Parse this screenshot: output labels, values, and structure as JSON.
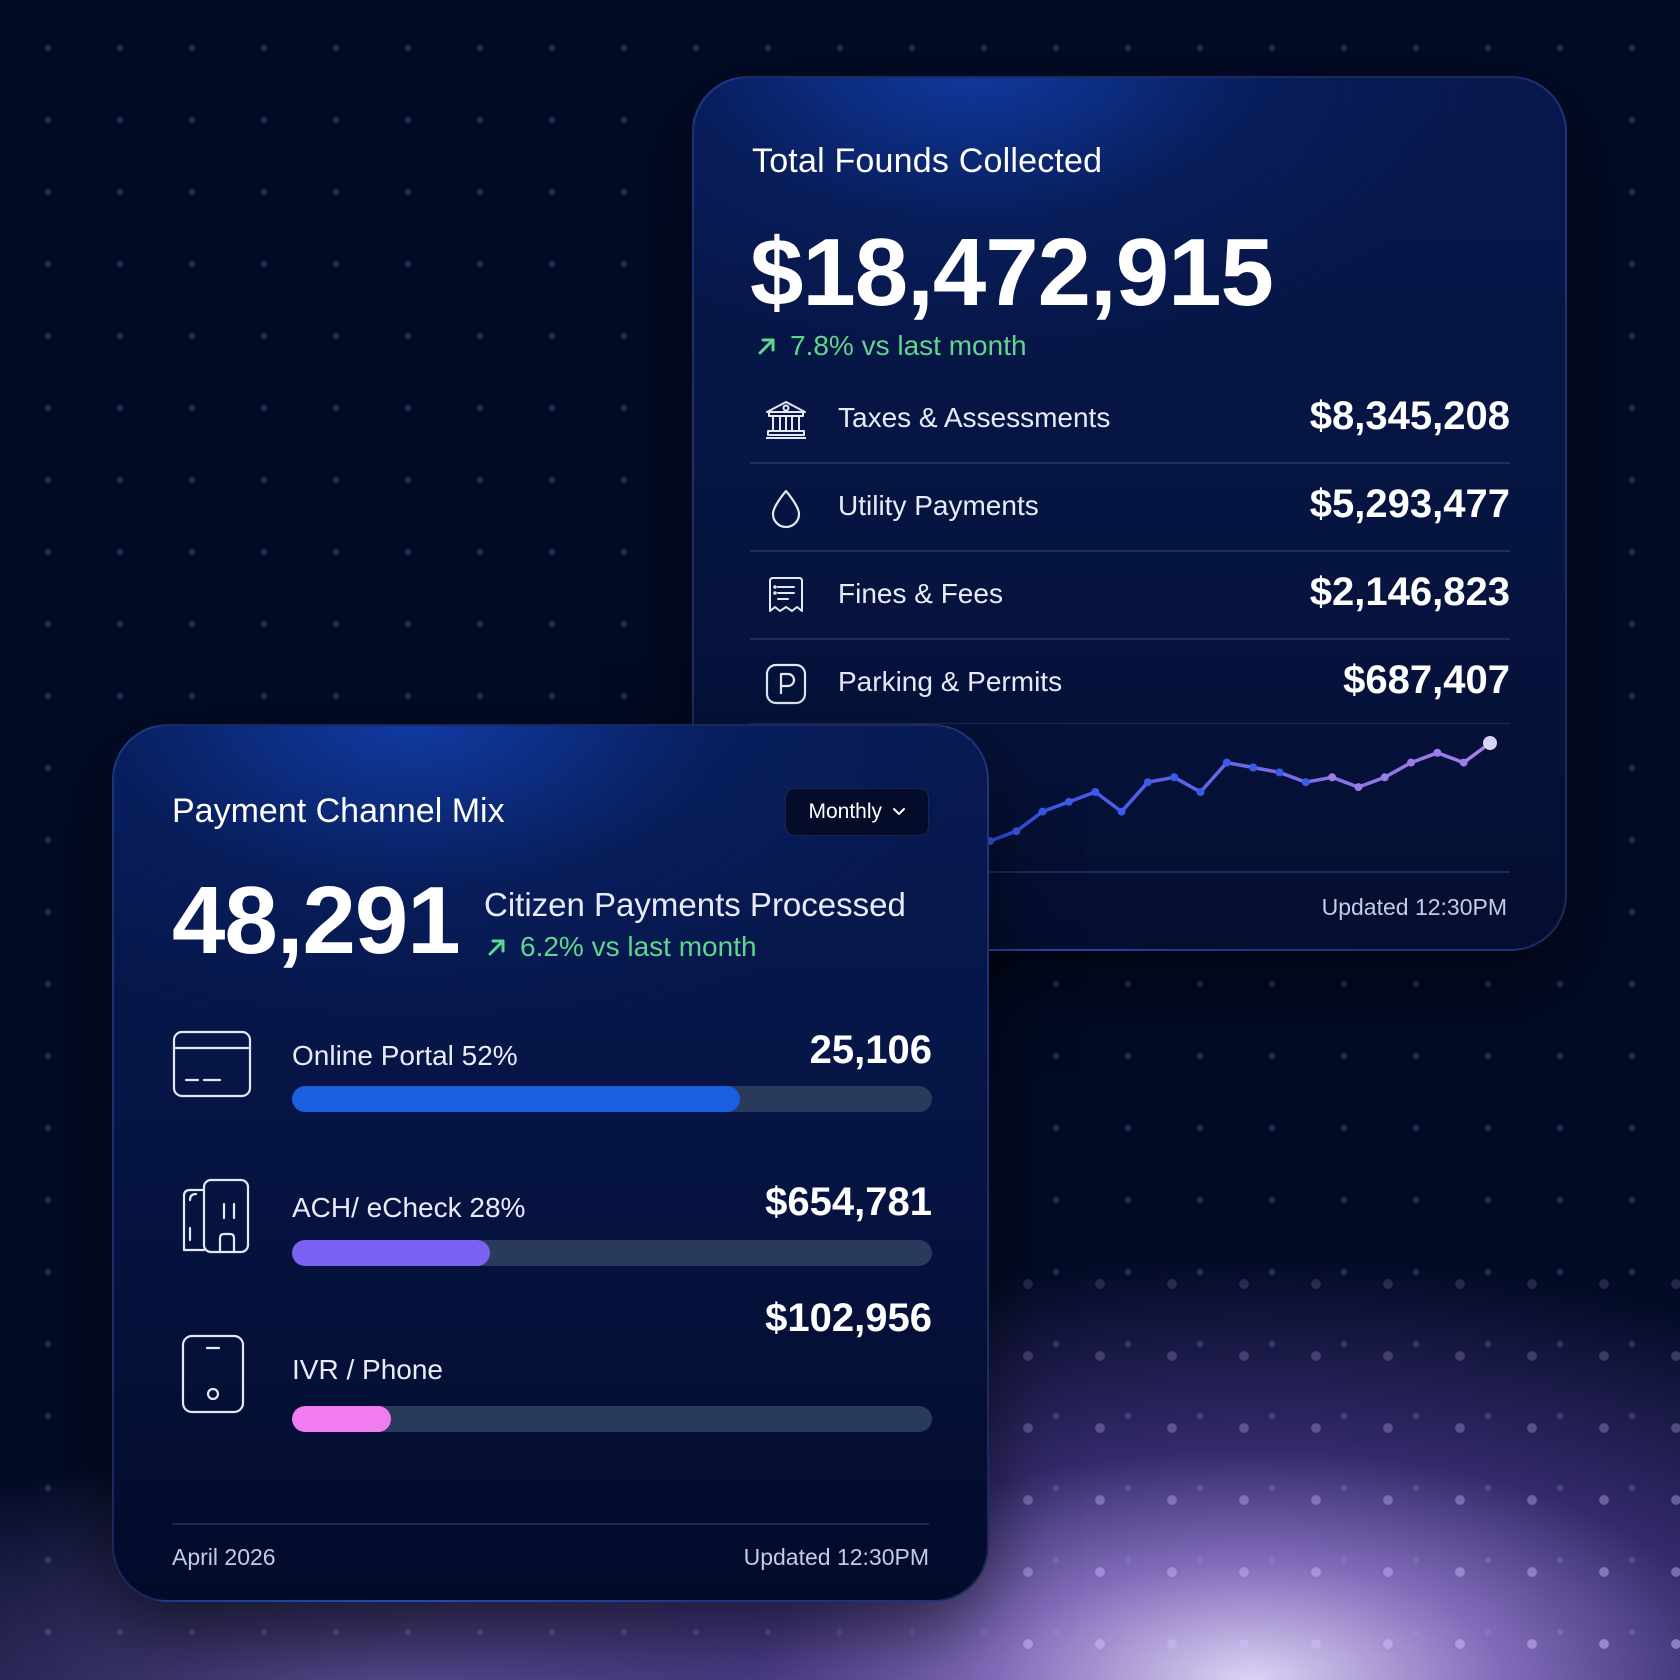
{
  "colors": {
    "trend_green": "#5fd58f",
    "online_bar": "#1a5fe0",
    "ach_bar": "#7a62f2",
    "ivr_bar": "#f17cf2",
    "track": "#2a3a5c",
    "sparkline_start": "#2f50e6",
    "sparkline_end": "#a981e6"
  },
  "total_card": {
    "title": "Total Founds Collected",
    "amount": "$18,472,915",
    "trend": "7.8% vs last month",
    "rows": [
      {
        "icon": "bank-icon",
        "label": "Taxes & Assessments",
        "value": "$8,345,208"
      },
      {
        "icon": "droplet-icon",
        "label": "Utility Payments",
        "value": "$5,293,477"
      },
      {
        "icon": "receipt-icon",
        "label": "Fines & Fees",
        "value": "$2,146,823"
      },
      {
        "icon": "parking-icon",
        "label": "Parking & Permits",
        "value": "$687,407"
      }
    ],
    "sparkline": [
      3,
      4,
      6,
      7,
      8,
      6,
      9,
      9.5,
      8,
      11,
      10.5,
      10,
      9,
      9.5,
      8.5,
      9.5,
      11,
      12,
      11,
      13
    ],
    "updated": "Updated 12:30PM"
  },
  "mix_card": {
    "title": "Payment Channel Mix",
    "period": "Monthly",
    "count": "48,291",
    "subtitle": "Citizen Payments Processed",
    "trend": "6.2% vs last month",
    "channels": [
      {
        "icon": "card-icon",
        "label": "Online Portal 52%",
        "value": "25,106",
        "fill_percent": 70
      },
      {
        "icon": "bank-check-icon",
        "label": "ACH/ eCheck 28%",
        "value": "$654,781",
        "fill_percent": 31
      },
      {
        "icon": "phone-icon",
        "label": "IVR / Phone",
        "value": "$102,956",
        "fill_percent": 15.5
      }
    ],
    "date": "April 2026",
    "updated": "Updated 12:30PM"
  }
}
